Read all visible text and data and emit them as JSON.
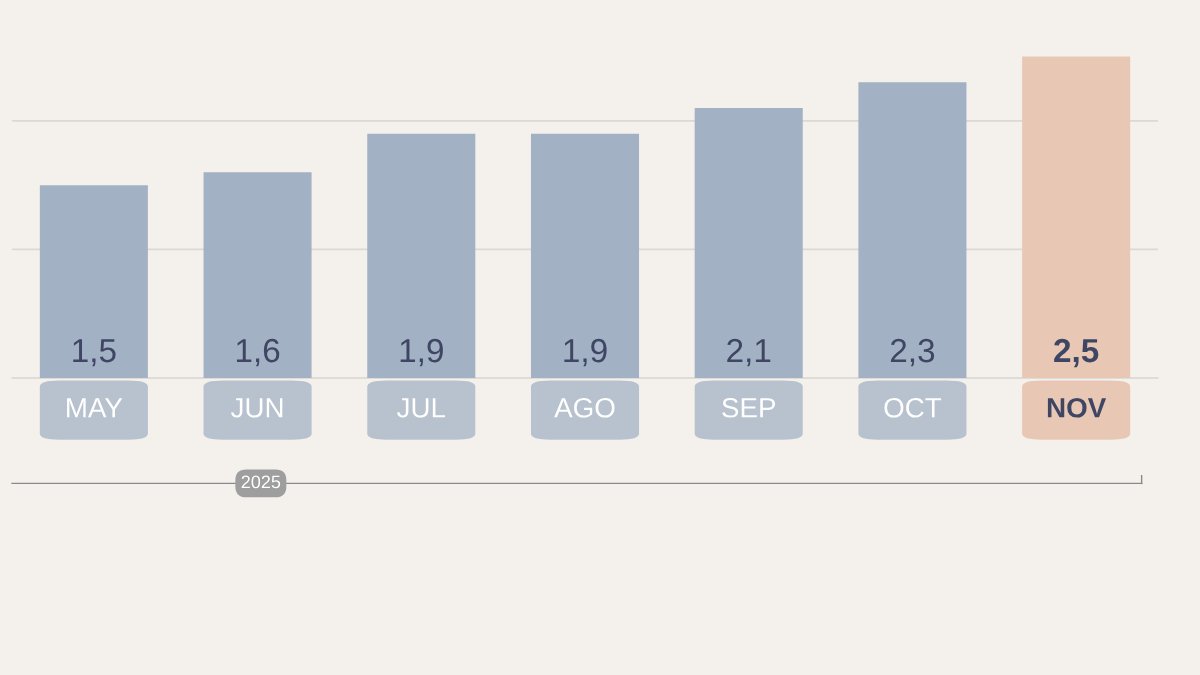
{
  "chart_data": {
    "type": "bar",
    "categories": [
      "MAY",
      "JUN",
      "JUL",
      "AGO",
      "SEP",
      "OCT",
      "NOV"
    ],
    "values": [
      1.5,
      1.6,
      1.9,
      1.9,
      2.1,
      2.3,
      2.5
    ],
    "value_labels": [
      "1,5",
      "1,6",
      "1,9",
      "1,9",
      "2,1",
      "2,3",
      "2,5"
    ],
    "colors": [
      "#a3b1c4",
      "#a3b1c4",
      "#a3b1c4",
      "#a3b1c4",
      "#a3b1c4",
      "#a3b1c4",
      "#e8c8b4"
    ],
    "ref_lines": [
      {
        "axis": "y",
        "value": 1,
        "color": "#dcd8d2"
      },
      {
        "axis": "y",
        "value": 2,
        "color": "#dcd8d2"
      }
    ],
    "tick_labels": false,
    "annotations": [
      "2025"
    ]
  }
}
